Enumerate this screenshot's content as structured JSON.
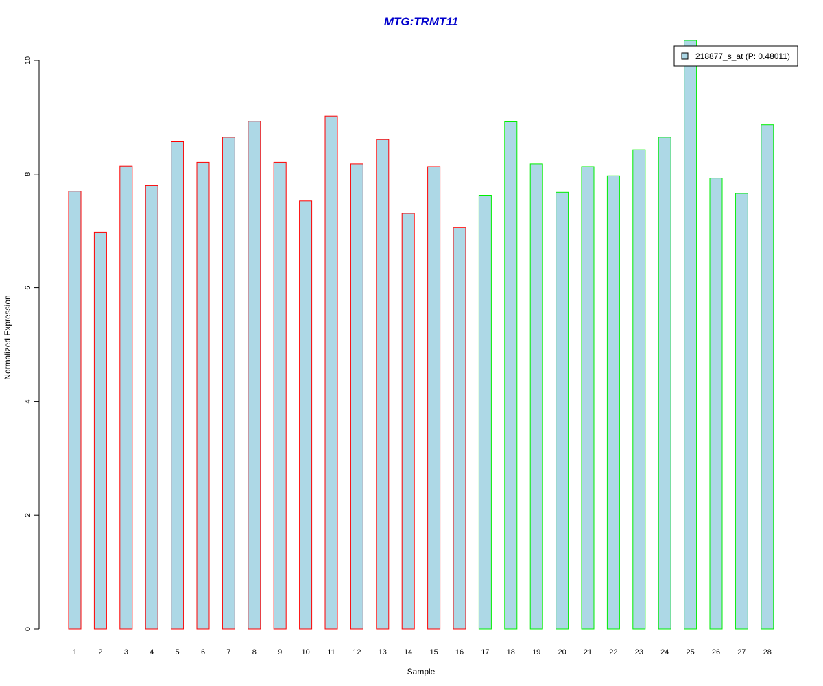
{
  "chart_data": {
    "type": "bar",
    "title": "MTG:TRMT11",
    "xlabel": "Sample",
    "ylabel": "Normalized Expression",
    "categories": [
      "1",
      "2",
      "3",
      "4",
      "5",
      "6",
      "7",
      "8",
      "9",
      "10",
      "11",
      "12",
      "13",
      "14",
      "15",
      "16",
      "17",
      "18",
      "19",
      "20",
      "21",
      "22",
      "23",
      "24",
      "25",
      "26",
      "27",
      "28"
    ],
    "series": [
      {
        "name": "218877_s_at (P: 0.48011)",
        "values": [
          7.7,
          6.98,
          8.14,
          7.8,
          8.57,
          8.21,
          8.65,
          8.93,
          8.21,
          7.53,
          9.02,
          8.18,
          8.61,
          7.31,
          8.13,
          7.06,
          7.63,
          8.92,
          8.18,
          7.68,
          8.13,
          7.97,
          8.43,
          8.65,
          10.35,
          7.93,
          7.66,
          8.87
        ]
      }
    ],
    "groups": [
      {
        "samples": "1-16",
        "border_color": "#ff0000"
      },
      {
        "samples": "17-28",
        "border_color": "#00ee00"
      }
    ],
    "ylim": [
      0,
      10
    ],
    "yticks": [
      0,
      2,
      4,
      6,
      8,
      10
    ],
    "grid": false,
    "legend_position": "top-right",
    "colors": {
      "title": "#0000cc",
      "bar_fill": "#add8e6",
      "group1_border": "#ff0000",
      "group2_border": "#00ee00"
    }
  }
}
